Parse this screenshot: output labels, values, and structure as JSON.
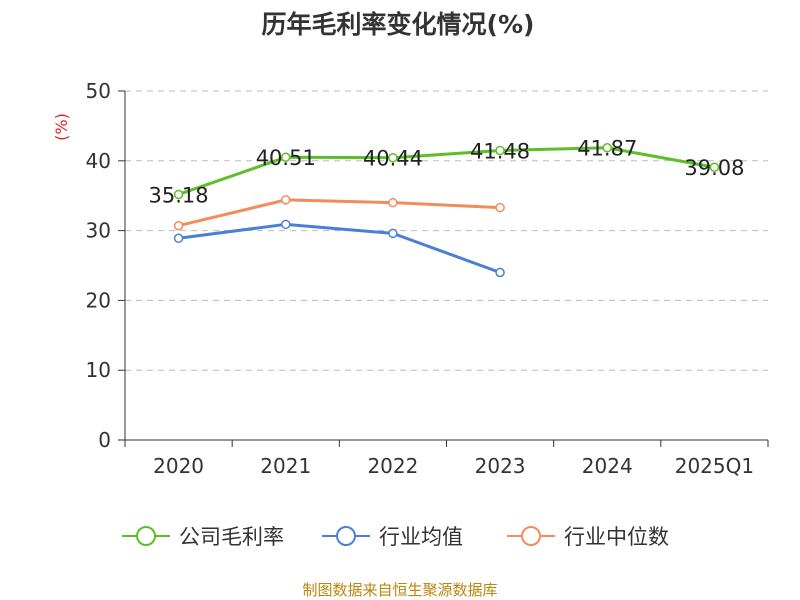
{
  "chart_data": {
    "type": "line",
    "title": "历年毛利率变化情况(%)",
    "ylabel": "(%)",
    "xlabel": "",
    "categories": [
      "2020",
      "2021",
      "2022",
      "2023",
      "2024",
      "2025Q1"
    ],
    "ylim": [
      0,
      50
    ],
    "yticks": [
      0,
      10,
      20,
      30,
      40,
      50
    ],
    "grid": true,
    "legend_position": "bottom",
    "series": [
      {
        "name": "公司毛利率",
        "color": "#5dbf28",
        "values": [
          35.18,
          40.51,
          40.44,
          41.48,
          41.87,
          39.08
        ],
        "labels": [
          "35.18",
          "40.51",
          "40.44",
          "41.48",
          "41.87",
          "39.08"
        ]
      },
      {
        "name": "行业均值",
        "color": "#4a7fd6",
        "values": [
          28.9,
          30.9,
          29.6,
          24.0,
          null,
          null
        ]
      },
      {
        "name": "行业中位数",
        "color": "#f28c5a",
        "values": [
          30.7,
          34.4,
          34.0,
          33.3,
          null,
          null
        ]
      }
    ]
  },
  "source_text": "制图数据来自恒生聚源数据库"
}
